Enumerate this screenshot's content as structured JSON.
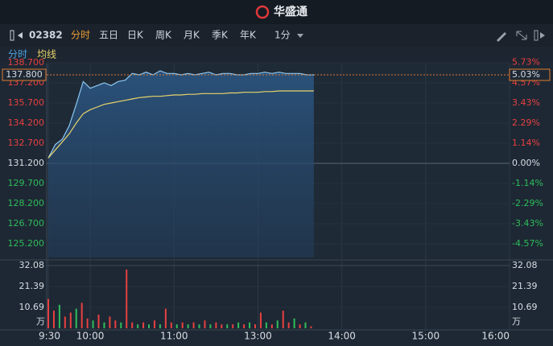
{
  "header": {
    "title": "华盛通"
  },
  "toolbar": {
    "code": "02382",
    "tabs": [
      "分时",
      "五日",
      "日K",
      "周K",
      "月K",
      "季K",
      "年K"
    ],
    "interval": "1分"
  },
  "sub_tabs": [
    "分时",
    "均线"
  ],
  "chart_data": [
    {
      "type": "line",
      "last_price": {
        "value": 137.8,
        "label": "137.800"
      },
      "last_change": {
        "value": 5.03,
        "label": "5.03%"
      },
      "x": [
        0,
        5,
        10,
        15,
        20,
        25,
        30,
        35,
        40,
        45,
        50,
        55,
        60,
        65,
        70,
        75,
        80,
        85,
        90,
        95,
        100,
        105,
        110,
        115,
        120,
        125,
        130,
        135,
        140,
        145,
        150,
        155,
        160,
        165,
        170,
        175,
        180,
        185,
        190
      ],
      "series": [
        {
          "color": "#8ec8f0",
          "values": [
            131.6,
            132.6,
            133.0,
            134.0,
            135.6,
            137.3,
            136.8,
            137.0,
            137.2,
            137.0,
            137.3,
            137.4,
            137.9,
            137.8,
            138.0,
            137.8,
            138.1,
            137.9,
            137.9,
            137.8,
            137.9,
            137.8,
            137.9,
            138.0,
            137.8,
            137.9,
            137.9,
            137.8,
            137.8,
            137.9,
            137.9,
            138.0,
            137.9,
            138.0,
            137.9,
            137.9,
            137.9,
            137.8,
            137.8
          ]
        },
        {
          "color": "#e8d46a",
          "values": [
            131.6,
            132.2,
            132.8,
            133.4,
            134.2,
            134.9,
            135.2,
            135.4,
            135.6,
            135.7,
            135.8,
            135.9,
            136.0,
            136.1,
            136.15,
            136.2,
            136.2,
            136.25,
            136.3,
            136.3,
            136.35,
            136.35,
            136.4,
            136.4,
            136.4,
            136.4,
            136.45,
            136.45,
            136.5,
            136.5,
            136.5,
            136.55,
            136.55,
            136.6,
            136.6,
            136.6,
            136.6,
            136.6,
            136.6
          ]
        }
      ],
      "xlim": [
        0,
        330
      ],
      "ylim": [
        124.18,
        138.82
      ],
      "yticks": [
        {
          "value": 138.7,
          "label": "138.700"
        },
        {
          "value": 137.2,
          "label": "137.200"
        },
        {
          "value": 135.7,
          "label": "135.700"
        },
        {
          "value": 134.2,
          "label": "134.200"
        },
        {
          "value": 132.7,
          "label": "132.700"
        },
        {
          "value": 131.2,
          "label": "131.200"
        },
        {
          "value": 129.7,
          "label": "129.700"
        },
        {
          "value": 128.2,
          "label": "128.200"
        },
        {
          "value": 126.7,
          "label": "126.700"
        },
        {
          "value": 125.2,
          "label": "125.200"
        }
      ],
      "y2lim": [
        -5.35,
        5.81
      ],
      "y2ticks": [
        {
          "value": 5.73,
          "label": "5.73%"
        },
        {
          "value": 4.57,
          "label": "4.57%"
        },
        {
          "value": 3.43,
          "label": "3.43%"
        },
        {
          "value": 2.29,
          "label": "2.29%"
        },
        {
          "value": 1.14,
          "label": "1.14%"
        },
        {
          "value": 0,
          "label": "0.00%"
        },
        {
          "value": -1.14,
          "label": "-1.14%"
        },
        {
          "value": -2.29,
          "label": "-2.29%"
        },
        {
          "value": -3.43,
          "label": "-3.43%"
        },
        {
          "value": -4.57,
          "label": "-4.57%"
        }
      ],
      "up_color": "#e84040",
      "down_color": "#2ebd5a",
      "flat_color": "#d8dde4"
    },
    {
      "type": "bar",
      "unit": "万",
      "x": [
        0,
        4,
        8,
        12,
        16,
        20,
        24,
        28,
        32,
        36,
        40,
        44,
        48,
        52,
        56,
        60,
        64,
        68,
        72,
        76,
        80,
        84,
        88,
        92,
        96,
        100,
        104,
        108,
        112,
        116,
        120,
        124,
        128,
        132,
        136,
        140,
        144,
        148,
        152,
        156,
        160,
        164,
        168,
        172,
        176,
        180,
        184,
        188
      ],
      "values": [
        15,
        9,
        12,
        6,
        8,
        10,
        13,
        5,
        4,
        7,
        3,
        6,
        4,
        3,
        30,
        3,
        2,
        3,
        2,
        4,
        2,
        10,
        3,
        2,
        3,
        2,
        3,
        2,
        4,
        2,
        3,
        2,
        2,
        2,
        3,
        2,
        3,
        2,
        8,
        3,
        2,
        4,
        9,
        3,
        5,
        2,
        3,
        1
      ],
      "colors": [
        "#e84040",
        "#e84040",
        "#2ebd5a",
        "#e84040",
        "#e84040",
        "#2ebd5a",
        "#e84040",
        "#e84040",
        "#2ebd5a",
        "#e84040",
        "#2ebd5a",
        "#e84040",
        "#e84040",
        "#2ebd5a",
        "#e84040",
        "#e84040",
        "#2ebd5a",
        "#e84040",
        "#2ebd5a",
        "#e84040",
        "#2ebd5a",
        "#e84040",
        "#e84040",
        "#2ebd5a",
        "#e84040",
        "#2ebd5a",
        "#e84040",
        "#2ebd5a",
        "#e84040",
        "#2ebd5a",
        "#e84040",
        "#e84040",
        "#2ebd5a",
        "#e84040",
        "#2ebd5a",
        "#e84040",
        "#2ebd5a",
        "#e84040",
        "#e84040",
        "#2ebd5a",
        "#e84040",
        "#2ebd5a",
        "#e84040",
        "#e84040",
        "#2ebd5a",
        "#e84040",
        "#2ebd5a",
        "#e84040"
      ],
      "xlim": [
        0,
        330
      ],
      "xticks": [
        {
          "value": 0,
          "label": "9:30"
        },
        {
          "value": 30,
          "label": "10:00"
        },
        {
          "value": 90,
          "label": "11:00"
        },
        {
          "value": 150,
          "label": "13:00"
        },
        {
          "value": 210,
          "label": "14:00"
        },
        {
          "value": 270,
          "label": "15:00"
        },
        {
          "value": 330,
          "label": "16:00"
        }
      ],
      "ylim": [
        0,
        33.3
      ],
      "yticks": [
        10.69,
        21.39,
        32.08
      ]
    }
  ]
}
